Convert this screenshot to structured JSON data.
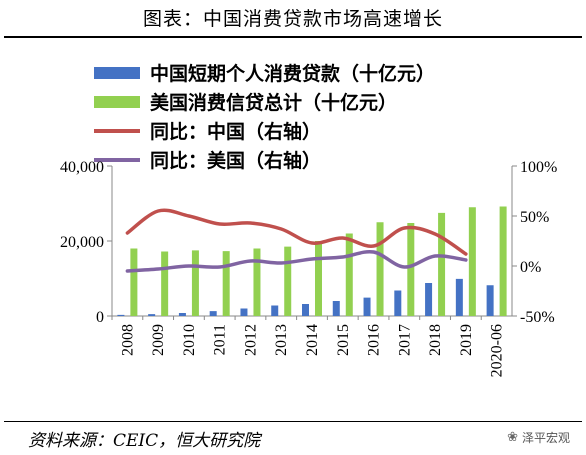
{
  "title": "图表：中国消费贷款市场高速增长",
  "source": "资料来源：CEIC，恒大研究院",
  "watermark": "泽平宏观",
  "chart_data": {
    "type": "bar",
    "categories": [
      "2008",
      "2009",
      "2010",
      "2011",
      "2012",
      "2013",
      "2014",
      "2015",
      "2016",
      "2017",
      "2018",
      "2019",
      "2020-06"
    ],
    "series": [
      {
        "name": "中国短期个人消费贷款（十亿元）",
        "type": "bar",
        "axis": "left",
        "color": "#4472c4",
        "values": [
          300,
          500,
          800,
          1300,
          2000,
          2800,
          3200,
          4000,
          4900,
          6800,
          8800,
          9900,
          8200
        ]
      },
      {
        "name": "美国消费信贷总计（十亿元）",
        "type": "bar",
        "axis": "left",
        "color": "#92d050",
        "values": [
          18000,
          17200,
          17500,
          17300,
          18000,
          18500,
          20000,
          22000,
          25000,
          24800,
          27500,
          29000,
          29200
        ]
      },
      {
        "name": "同比：中国（右轴）",
        "type": "line",
        "axis": "right",
        "color": "#c0504d",
        "values": [
          33,
          55,
          50,
          42,
          43,
          37,
          23,
          28,
          20,
          38,
          32,
          12,
          null
        ]
      },
      {
        "name": "同比：美国（右轴）",
        "type": "line",
        "axis": "right",
        "color": "#8064a2",
        "values": [
          -5,
          -3,
          0,
          -1,
          5,
          3,
          7,
          9,
          14,
          -1,
          10,
          6,
          null
        ]
      }
    ],
    "y_left": {
      "ticks": [
        "40,000",
        "20,000",
        "0"
      ],
      "range": [
        0,
        40000
      ]
    },
    "y_right": {
      "ticks": [
        "100%",
        "50%",
        "0%",
        "-50%"
      ],
      "range": [
        -50,
        100
      ]
    },
    "legend_position": "top-left"
  }
}
